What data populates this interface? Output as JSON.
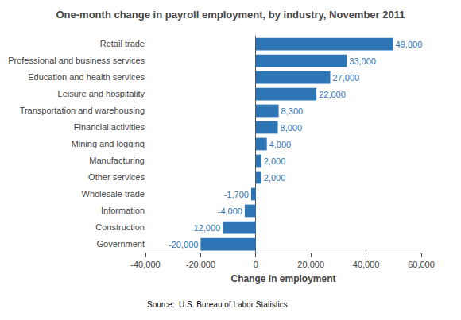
{
  "chart_data": {
    "type": "bar",
    "orientation": "horizontal",
    "title": "One-month change in payroll employment, by industry, November 2011",
    "xlabel": "Change in employment",
    "annotations": [
      "Source:  U.S. Bureau of Labor Statistics"
    ],
    "categories": [
      "Retail trade",
      "Professional and business services",
      "Education and health services",
      "Leisure and hospitality",
      "Transportation and warehousing",
      "Financial activities",
      "Mining and logging",
      "Manufacturing",
      "Other services",
      "Wholesale trade",
      "Information",
      "Construction",
      "Government"
    ],
    "values": [
      49800,
      33000,
      27000,
      22000,
      8300,
      8000,
      4000,
      2000,
      2000,
      -1700,
      -4000,
      -12000,
      -20000
    ],
    "value_labels": [
      "49,800",
      "33,000",
      "27,000",
      "22,000",
      "8,300",
      "8,000",
      "4,000",
      "2,000",
      "2,000",
      "-1,700",
      "-4,000",
      "-12,000",
      "-20,000"
    ],
    "data_labels": true,
    "color": "#2E75B6",
    "xlim": [
      -40000,
      60000
    ],
    "xticks": [
      {
        "value": -40000,
        "label": "-40,000"
      },
      {
        "value": -20000,
        "label": "-20,000"
      },
      0,
      {
        "value": 20000,
        "label": "20,000"
      },
      {
        "value": 40000,
        "label": "40,000"
      },
      {
        "value": 60000,
        "label": "60,000"
      }
    ],
    "grid": false
  }
}
